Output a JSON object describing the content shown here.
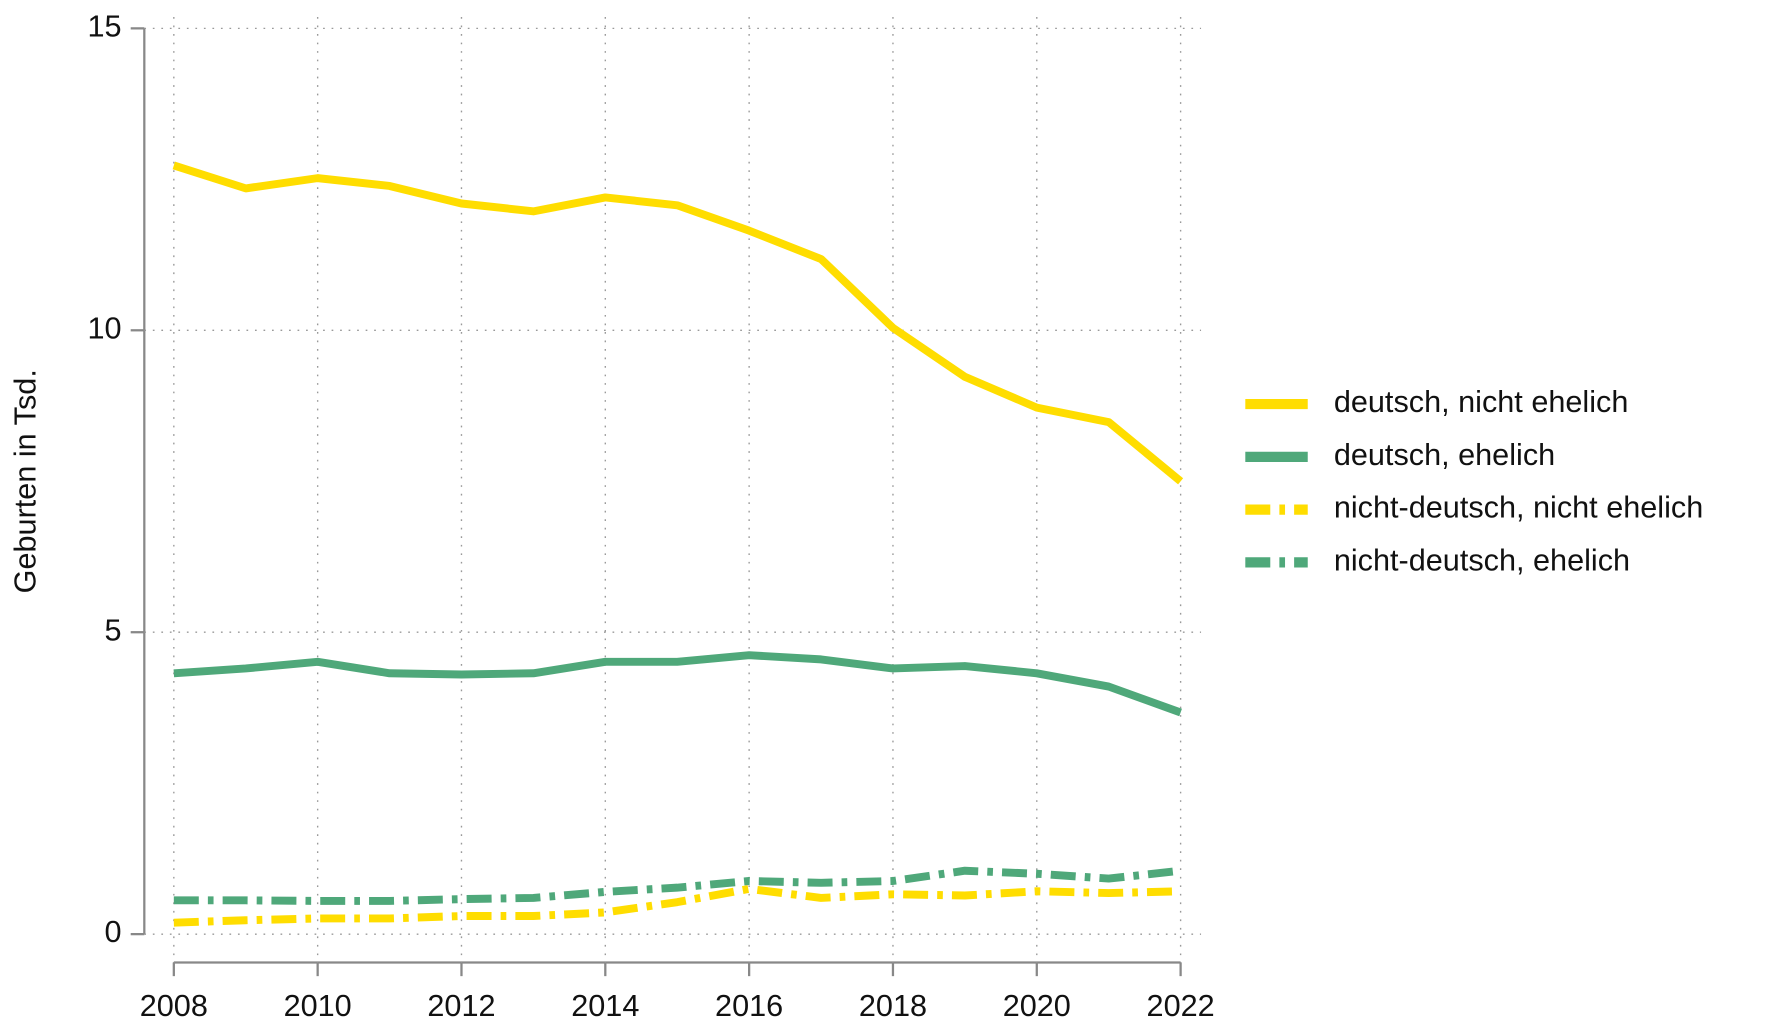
{
  "chart_data": {
    "type": "line",
    "y_label": "Geburten in Tsd.",
    "x": [
      2008,
      2009,
      2010,
      2011,
      2012,
      2013,
      2014,
      2015,
      2016,
      2017,
      2018,
      2019,
      2020,
      2021,
      2022
    ],
    "xlim": [
      2008,
      2022
    ],
    "xticks": [
      2008,
      2010,
      2012,
      2014,
      2016,
      2018,
      2020,
      2022
    ],
    "ylim": [
      0,
      15
    ],
    "yticks": [
      0,
      5,
      10,
      15
    ],
    "grid": true,
    "legend": "right",
    "series": [
      {
        "name": "deutsch, nicht ehelich",
        "color": "#FFDD00",
        "dash": "solid",
        "values": [
          12.73,
          12.35,
          12.52,
          12.39,
          12.1,
          11.97,
          12.2,
          12.07,
          11.65,
          11.18,
          10.04,
          9.23,
          8.72,
          8.48,
          7.5
        ]
      },
      {
        "name": "deutsch, ehelich",
        "color": "#4FA87A",
        "dash": "solid",
        "values": [
          4.32,
          4.4,
          4.51,
          4.32,
          4.3,
          4.32,
          4.51,
          4.51,
          4.62,
          4.55,
          4.4,
          4.44,
          4.32,
          4.1,
          3.67
        ]
      },
      {
        "name": "nicht-deutsch, nicht ehelich",
        "color": "#FFDD00",
        "dash": "dashdot",
        "values": [
          0.19,
          0.23,
          0.26,
          0.26,
          0.3,
          0.3,
          0.36,
          0.53,
          0.75,
          0.6,
          0.66,
          0.64,
          0.71,
          0.68,
          0.71
        ]
      },
      {
        "name": "nicht-deutsch, ehelich",
        "color": "#4FA87A",
        "dash": "dashdot",
        "values": [
          0.56,
          0.56,
          0.55,
          0.55,
          0.58,
          0.6,
          0.7,
          0.77,
          0.88,
          0.85,
          0.88,
          1.05,
          1.0,
          0.92,
          1.05
        ]
      }
    ]
  }
}
